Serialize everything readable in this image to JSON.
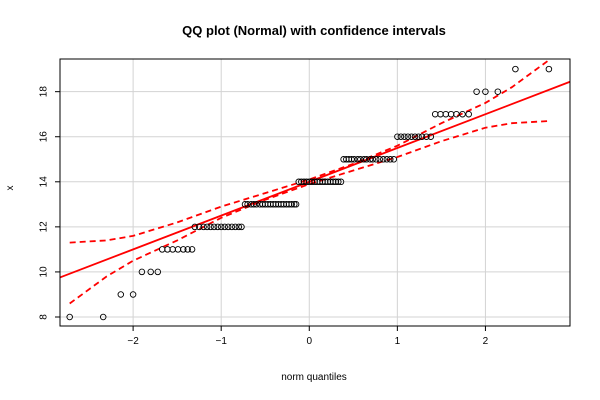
{
  "chart_data": {
    "type": "scatter",
    "title": "QQ plot (Normal) with confidence intervals",
    "xlabel": "norm quantiles",
    "ylabel": "x",
    "xlim": [
      -2.83,
      2.96
    ],
    "ylim": [
      7.6,
      19.45
    ],
    "x_ticks": [
      -2,
      -1,
      0,
      1,
      2
    ],
    "y_ticks": [
      8,
      10,
      12,
      14,
      16,
      18
    ],
    "grid": true,
    "colors": {
      "points": "#000000",
      "fit_line": "#ff0000",
      "confidence_band": "#ff0000",
      "grid": "#d3d3d3",
      "frame": "#000000"
    },
    "points": [
      [
        -2.72,
        8
      ],
      [
        -2.34,
        8
      ],
      [
        -2.14,
        9
      ],
      [
        -2.0,
        9
      ],
      [
        -1.9,
        10
      ],
      [
        -1.8,
        10
      ],
      [
        -1.72,
        10
      ],
      [
        -1.67,
        11
      ],
      [
        -1.61,
        11
      ],
      [
        -1.55,
        11
      ],
      [
        -1.49,
        11
      ],
      [
        -1.43,
        11
      ],
      [
        -1.38,
        11
      ],
      [
        -1.33,
        11
      ],
      [
        -1.3,
        12
      ],
      [
        -1.25,
        12
      ],
      [
        -1.2,
        12
      ],
      [
        -1.16,
        12
      ],
      [
        -1.12,
        12
      ],
      [
        -1.08,
        12
      ],
      [
        -1.04,
        12
      ],
      [
        -1.0,
        12
      ],
      [
        -0.96,
        12
      ],
      [
        -0.92,
        12
      ],
      [
        -0.88,
        12
      ],
      [
        -0.84,
        12
      ],
      [
        -0.8,
        12
      ],
      [
        -0.77,
        12
      ],
      [
        -0.73,
        13
      ],
      [
        -0.7,
        13
      ],
      [
        -0.66,
        13
      ],
      [
        -0.63,
        13
      ],
      [
        -0.6,
        13
      ],
      [
        -0.56,
        13
      ],
      [
        -0.53,
        13
      ],
      [
        -0.5,
        13
      ],
      [
        -0.47,
        13
      ],
      [
        -0.44,
        13
      ],
      [
        -0.41,
        13
      ],
      [
        -0.38,
        13
      ],
      [
        -0.35,
        13
      ],
      [
        -0.32,
        13
      ],
      [
        -0.29,
        13
      ],
      [
        -0.26,
        13
      ],
      [
        -0.23,
        13
      ],
      [
        -0.2,
        13
      ],
      [
        -0.17,
        13
      ],
      [
        -0.15,
        13
      ],
      [
        -0.12,
        14
      ],
      [
        -0.09,
        14
      ],
      [
        -0.06,
        14
      ],
      [
        -0.03,
        14
      ],
      [
        0.0,
        14
      ],
      [
        0.03,
        14
      ],
      [
        0.06,
        14
      ],
      [
        0.09,
        14
      ],
      [
        0.12,
        14
      ],
      [
        0.15,
        14
      ],
      [
        0.18,
        14
      ],
      [
        0.21,
        14
      ],
      [
        0.24,
        14
      ],
      [
        0.27,
        14
      ],
      [
        0.3,
        14
      ],
      [
        0.33,
        14
      ],
      [
        0.36,
        14
      ],
      [
        0.39,
        15
      ],
      [
        0.42,
        15
      ],
      [
        0.45,
        15
      ],
      [
        0.48,
        15
      ],
      [
        0.51,
        15
      ],
      [
        0.55,
        15
      ],
      [
        0.58,
        15
      ],
      [
        0.62,
        15
      ],
      [
        0.65,
        15
      ],
      [
        0.69,
        15
      ],
      [
        0.72,
        15
      ],
      [
        0.76,
        15
      ],
      [
        0.8,
        15
      ],
      [
        0.84,
        15
      ],
      [
        0.88,
        15
      ],
      [
        0.92,
        15
      ],
      [
        0.96,
        15
      ],
      [
        1.0,
        16
      ],
      [
        1.04,
        16
      ],
      [
        1.08,
        16
      ],
      [
        1.12,
        16
      ],
      [
        1.16,
        16
      ],
      [
        1.2,
        16
      ],
      [
        1.24,
        16
      ],
      [
        1.28,
        16
      ],
      [
        1.33,
        16
      ],
      [
        1.38,
        16
      ],
      [
        1.43,
        17
      ],
      [
        1.49,
        17
      ],
      [
        1.55,
        17
      ],
      [
        1.61,
        17
      ],
      [
        1.67,
        17
      ],
      [
        1.74,
        17
      ],
      [
        1.81,
        17
      ],
      [
        1.9,
        18
      ],
      [
        2.0,
        18
      ],
      [
        2.14,
        18
      ],
      [
        2.34,
        19
      ],
      [
        2.72,
        19
      ]
    ],
    "fit_line": {
      "intercept": 14.0,
      "slope": 1.5
    },
    "confidence_band": {
      "upper": [
        [
          -2.72,
          11.3
        ],
        [
          -2.3,
          11.4
        ],
        [
          -2.0,
          11.6
        ],
        [
          -1.5,
          12.2
        ],
        [
          -1.0,
          12.9
        ],
        [
          -0.5,
          13.5
        ],
        [
          0.0,
          14.1
        ],
        [
          0.5,
          14.8
        ],
        [
          1.0,
          15.6
        ],
        [
          1.5,
          16.6
        ],
        [
          2.0,
          17.5
        ],
        [
          2.3,
          18.2
        ],
        [
          2.72,
          19.4
        ]
      ],
      "lower": [
        [
          -2.72,
          8.6
        ],
        [
          -2.3,
          9.8
        ],
        [
          -2.0,
          10.5
        ],
        [
          -1.5,
          11.4
        ],
        [
          -1.0,
          12.4
        ],
        [
          -0.5,
          13.2
        ],
        [
          0.0,
          13.9
        ],
        [
          0.5,
          14.5
        ],
        [
          1.0,
          15.1
        ],
        [
          1.5,
          15.8
        ],
        [
          2.0,
          16.4
        ],
        [
          2.3,
          16.6
        ],
        [
          2.72,
          16.7
        ]
      ]
    }
  }
}
